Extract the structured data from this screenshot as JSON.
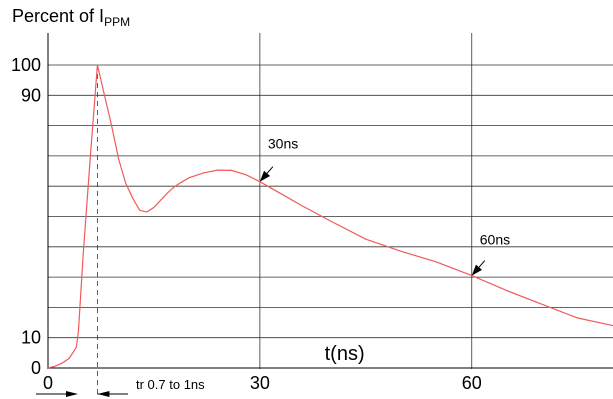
{
  "chart_data": {
    "type": "line",
    "title": "Percent of I",
    "title_subscript": "PPM",
    "xlabel": "t(ns)",
    "ylabel": "",
    "xlim": [
      0,
      80
    ],
    "ylim": [
      0,
      100
    ],
    "x_ticks": [
      0,
      30,
      60
    ],
    "y_ticks": [
      0,
      10,
      90,
      100
    ],
    "grid": true,
    "line_color": "#f05a5a",
    "series": [
      {
        "x": [
          0,
          1,
          2,
          3,
          4,
          4.3,
          5,
          6,
          7,
          8,
          9,
          10,
          11,
          12,
          13,
          14,
          15,
          16,
          17,
          18,
          19,
          20,
          22,
          24,
          26,
          28,
          30,
          33,
          36,
          40,
          45,
          50,
          55,
          60,
          65,
          70,
          75,
          80
        ],
        "y": [
          0,
          0.6,
          1.6,
          3.2,
          6.8,
          12,
          38,
          70,
          100,
          90,
          80,
          69,
          61,
          56,
          52,
          51.5,
          53,
          55.5,
          58,
          60,
          61.5,
          62.8,
          64.4,
          65.3,
          65.2,
          63.8,
          61.5,
          57.5,
          53.5,
          48.5,
          42.5,
          38.5,
          35,
          30.5,
          25.5,
          21,
          16.5,
          14
        ]
      }
    ],
    "annotations": [
      {
        "text": "30ns",
        "x": 30,
        "y": 61.5
      },
      {
        "text": "60ns",
        "x": 60,
        "y": 30.5
      },
      {
        "text": "tr 0.7 to 1ns",
        "x_from": 0,
        "x_to": 7
      }
    ]
  }
}
